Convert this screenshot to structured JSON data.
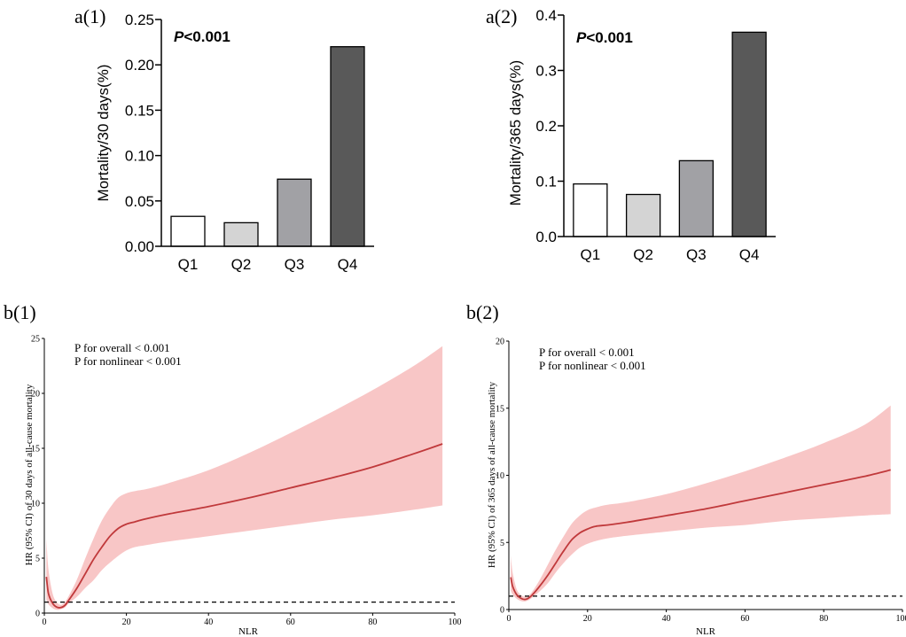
{
  "colors": {
    "background": "#ffffff",
    "axis": "#000000",
    "bar_fills": [
      "#ffffff",
      "#d4d4d4",
      "#a1a1a5",
      "#595959"
    ],
    "curve": "#c0393b",
    "ci_band": "#f8c6c6",
    "reference_line": "#000000"
  },
  "chart_data": [
    {
      "id": "a1",
      "panel_label": "a(1)",
      "type": "bar",
      "categories": [
        "Q1",
        "Q2",
        "Q3",
        "Q4"
      ],
      "values": [
        0.033,
        0.026,
        0.074,
        0.22
      ],
      "ylabel": "Mortality/30 days(%)",
      "xlabel": "",
      "ylim": [
        0,
        0.25
      ],
      "yticks": [
        0,
        0.05,
        0.1,
        0.15,
        0.2,
        0.25
      ],
      "ytick_labels": [
        "0.00",
        "0.05",
        "0.10",
        "0.15",
        "0.20",
        "0.25"
      ],
      "annotation_italic": "P",
      "annotation_rest": "<0.001"
    },
    {
      "id": "a2",
      "panel_label": "a(2)",
      "type": "bar",
      "categories": [
        "Q1",
        "Q2",
        "Q3",
        "Q4"
      ],
      "values": [
        0.095,
        0.076,
        0.137,
        0.369
      ],
      "ylabel": "Mortality/365 days(%)",
      "xlabel": "",
      "ylim": [
        0,
        0.4
      ],
      "yticks": [
        0,
        0.1,
        0.2,
        0.3,
        0.4
      ],
      "ytick_labels": [
        "0.0",
        "0.1",
        "0.2",
        "0.3",
        "0.4"
      ],
      "annotation_italic": "P",
      "annotation_rest": "<0.001"
    },
    {
      "id": "b1",
      "panel_label": "b(1)",
      "type": "line",
      "xlabel": "NLR",
      "ylabel": "HR (95% CI) of 30 days of all-cause mortality",
      "xlim": [
        0,
        100
      ],
      "ylim": [
        0,
        25
      ],
      "xticks": [
        0,
        20,
        40,
        60,
        80,
        100
      ],
      "yticks": [
        0,
        5,
        10,
        15,
        20,
        25
      ],
      "reference_y": 1,
      "annotations": [
        "P for overall < 0.001",
        "P for nonlinear < 0.001"
      ],
      "series": [
        {
          "name": "HR",
          "x": [
            0.5,
            1,
            2,
            3,
            4,
            5,
            6,
            8,
            10,
            12,
            14,
            16,
            18,
            20,
            22,
            25,
            30,
            40,
            50,
            60,
            70,
            80,
            90,
            97
          ],
          "y": [
            3.3,
            1.8,
            0.9,
            0.55,
            0.5,
            0.7,
            1.2,
            2.3,
            3.6,
            4.9,
            6.0,
            7.0,
            7.7,
            8.1,
            8.3,
            8.6,
            9.0,
            9.7,
            10.5,
            11.4,
            12.3,
            13.3,
            14.5,
            15.4
          ]
        }
      ],
      "ci_lower": [
        1.2,
        0.8,
        0.45,
        0.3,
        0.35,
        0.5,
        0.9,
        1.5,
        2.3,
        3.0,
        3.9,
        4.6,
        5.2,
        5.7,
        6.0,
        6.2,
        6.5,
        7.0,
        7.5,
        8.0,
        8.5,
        8.9,
        9.4,
        9.8
      ],
      "ci_upper": [
        6.8,
        4.0,
        1.8,
        1.0,
        0.75,
        1.0,
        1.6,
        3.1,
        5.0,
        6.8,
        8.4,
        9.6,
        10.5,
        10.9,
        11.1,
        11.3,
        11.8,
        13.0,
        14.6,
        16.4,
        18.3,
        20.3,
        22.5,
        24.3
      ]
    },
    {
      "id": "b2",
      "panel_label": "b(2)",
      "type": "line",
      "xlabel": "NLR",
      "ylabel": "HR (95% CI) of 365 days of all-cause mortality",
      "xlim": [
        0,
        100
      ],
      "ylim": [
        0,
        20
      ],
      "xticks": [
        0,
        20,
        40,
        60,
        80,
        100
      ],
      "yticks": [
        0,
        5,
        10,
        15,
        20
      ],
      "reference_y": 1,
      "annotations": [
        "P for overall < 0.001",
        "P for nonlinear < 0.001"
      ],
      "series": [
        {
          "name": "HR",
          "x": [
            0.5,
            1,
            2,
            3,
            4,
            5,
            6,
            8,
            10,
            12,
            14,
            16,
            18,
            20,
            22,
            25,
            30,
            40,
            50,
            60,
            70,
            80,
            90,
            97
          ],
          "y": [
            2.4,
            1.7,
            1.1,
            0.85,
            0.75,
            0.85,
            1.1,
            1.8,
            2.6,
            3.5,
            4.4,
            5.2,
            5.7,
            6.0,
            6.2,
            6.3,
            6.5,
            7.0,
            7.5,
            8.1,
            8.7,
            9.3,
            9.9,
            10.4
          ]
        }
      ],
      "ci_lower": [
        1.4,
        1.1,
        0.8,
        0.65,
        0.6,
        0.7,
        0.9,
        1.4,
        2.0,
        2.8,
        3.5,
        4.1,
        4.6,
        4.9,
        5.1,
        5.3,
        5.5,
        5.8,
        6.1,
        6.3,
        6.6,
        6.8,
        7.0,
        7.1
      ],
      "ci_upper": [
        4.0,
        2.7,
        1.5,
        1.1,
        0.95,
        1.05,
        1.35,
        2.3,
        3.4,
        4.5,
        5.5,
        6.4,
        7.0,
        7.4,
        7.6,
        7.8,
        8.0,
        8.6,
        9.4,
        10.3,
        11.3,
        12.4,
        13.7,
        15.2
      ]
    }
  ]
}
